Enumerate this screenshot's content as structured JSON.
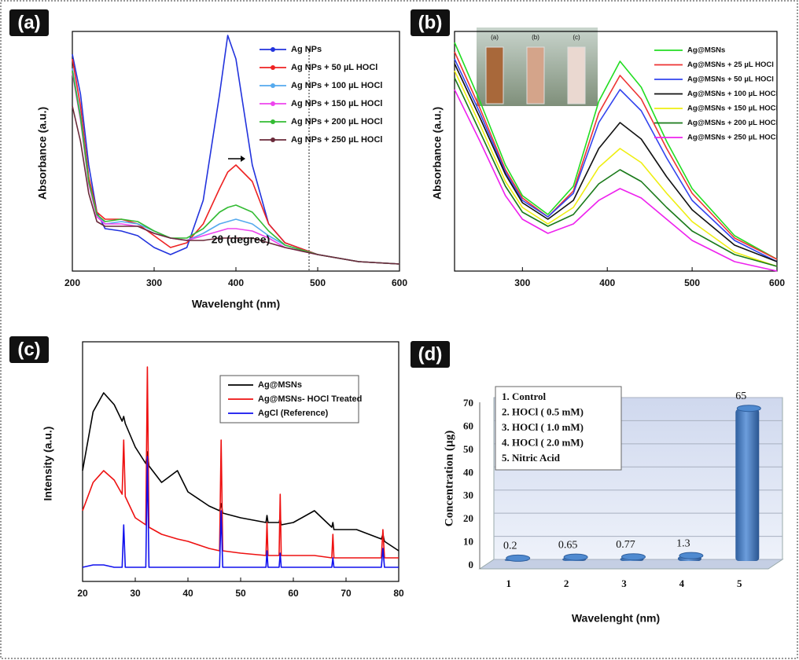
{
  "chart_data": [
    {
      "type": "line",
      "panel_label": "(a)",
      "x_label": "Wavelenght (nm)",
      "y_label": "Absorbance (a.u.)",
      "xlim": [
        200,
        600
      ],
      "ylim": [
        0,
        1
      ],
      "xticks": [
        200,
        300,
        400,
        500,
        600
      ],
      "legend_markers": true,
      "x": [
        200,
        210,
        220,
        230,
        240,
        260,
        280,
        300,
        320,
        340,
        360,
        380,
        390,
        400,
        420,
        440,
        460,
        500,
        550,
        600
      ],
      "series": [
        {
          "name": "Ag NPs",
          "color": "#2233dd",
          "values": [
            0.92,
            0.75,
            0.45,
            0.25,
            0.18,
            0.17,
            0.15,
            0.1,
            0.07,
            0.1,
            0.3,
            0.75,
            1.0,
            0.9,
            0.45,
            0.2,
            0.12,
            0.07,
            0.04,
            0.03
          ]
        },
        {
          "name": "Ag NPs + 50 µL HOCl",
          "color": "#ee2222",
          "values": [
            0.9,
            0.7,
            0.4,
            0.25,
            0.22,
            0.22,
            0.2,
            0.15,
            0.1,
            0.12,
            0.2,
            0.35,
            0.42,
            0.45,
            0.38,
            0.2,
            0.12,
            0.07,
            0.04,
            0.03
          ]
        },
        {
          "name": "Ag NPs + 100 µL HOCl",
          "color": "#55aaee",
          "values": [
            0.86,
            0.66,
            0.38,
            0.24,
            0.2,
            0.21,
            0.2,
            0.17,
            0.14,
            0.13,
            0.16,
            0.2,
            0.21,
            0.22,
            0.2,
            0.15,
            0.11,
            0.07,
            0.04,
            0.03
          ]
        },
        {
          "name": "Ag NPs + 150 µL HOCl",
          "color": "#ee44ee",
          "values": [
            0.84,
            0.64,
            0.37,
            0.23,
            0.2,
            0.2,
            0.19,
            0.16,
            0.14,
            0.13,
            0.15,
            0.17,
            0.18,
            0.18,
            0.17,
            0.14,
            0.1,
            0.07,
            0.04,
            0.03
          ]
        },
        {
          "name": "Ag NPs + 200 µL HOCl",
          "color": "#33bb33",
          "values": [
            0.85,
            0.65,
            0.38,
            0.24,
            0.21,
            0.22,
            0.21,
            0.17,
            0.14,
            0.14,
            0.18,
            0.25,
            0.27,
            0.28,
            0.25,
            0.17,
            0.11,
            0.07,
            0.04,
            0.03
          ]
        },
        {
          "name": "Ag NPs + 250 µL HOCl",
          "color": "#6a2a3a",
          "values": [
            0.7,
            0.55,
            0.33,
            0.21,
            0.19,
            0.19,
            0.19,
            0.16,
            0.14,
            0.13,
            0.13,
            0.14,
            0.14,
            0.14,
            0.14,
            0.12,
            0.1,
            0.07,
            0.04,
            0.03
          ]
        }
      ]
    },
    {
      "type": "line",
      "panel_label": "(b)",
      "x_label": "Wavelenght (nm)",
      "y_label": "Absorbance (a.u.)",
      "xlim": [
        220,
        600
      ],
      "ylim": [
        0,
        1
      ],
      "xticks": [
        300,
        400,
        500,
        600
      ],
      "legend_markers": false,
      "inset_labels": [
        "(a)",
        "(b)",
        "(c)"
      ],
      "x": [
        220,
        250,
        280,
        300,
        330,
        360,
        390,
        415,
        440,
        470,
        500,
        550,
        600
      ],
      "series": [
        {
          "name": "Ag@MSNs",
          "color": "#22dd22",
          "values": [
            0.97,
            0.72,
            0.45,
            0.32,
            0.24,
            0.36,
            0.72,
            0.89,
            0.78,
            0.55,
            0.35,
            0.15,
            0.05
          ]
        },
        {
          "name": "Ag@MSNs + 25 µL HOCl",
          "color": "#ee3333",
          "values": [
            0.93,
            0.69,
            0.43,
            0.31,
            0.23,
            0.34,
            0.67,
            0.83,
            0.73,
            0.52,
            0.33,
            0.14,
            0.05
          ]
        },
        {
          "name": "Ag@MSNs + 50 µL HOCl",
          "color": "#3344ee",
          "values": [
            0.9,
            0.67,
            0.42,
            0.3,
            0.23,
            0.33,
            0.63,
            0.77,
            0.68,
            0.48,
            0.3,
            0.13,
            0.04
          ]
        },
        {
          "name": "Ag@MSNs + 100 µL HOCl",
          "color": "#111111",
          "values": [
            0.88,
            0.65,
            0.41,
            0.29,
            0.22,
            0.3,
            0.52,
            0.63,
            0.56,
            0.4,
            0.26,
            0.11,
            0.04
          ]
        },
        {
          "name": "Ag@MSNs + 150 µL HOCl",
          "color": "#eeee11",
          "values": [
            0.85,
            0.62,
            0.38,
            0.27,
            0.2,
            0.27,
            0.44,
            0.52,
            0.46,
            0.33,
            0.21,
            0.08,
            0.02
          ]
        },
        {
          "name": "Ag@MSNs + 200 µL HOCl",
          "color": "#1a7a1a",
          "values": [
            0.82,
            0.59,
            0.36,
            0.25,
            0.19,
            0.24,
            0.37,
            0.43,
            0.38,
            0.27,
            0.17,
            0.07,
            0.02
          ]
        },
        {
          "name": "Ag@MSNs + 250 µL HOCl",
          "color": "#ee22ee",
          "values": [
            0.77,
            0.55,
            0.32,
            0.22,
            0.16,
            0.2,
            0.3,
            0.35,
            0.31,
            0.22,
            0.13,
            0.04,
            0.0
          ]
        }
      ]
    },
    {
      "type": "line",
      "panel_label": "(c)",
      "x_label": "2θ (degree)",
      "y_label": "Intensity (a.u.)",
      "xlim": [
        20,
        80
      ],
      "ylim": [
        0,
        1
      ],
      "xticks": [
        20,
        30,
        40,
        50,
        60,
        70,
        80
      ],
      "legend_markers": false,
      "legend_box": true,
      "x": [
        20,
        22,
        24,
        26,
        27.5,
        27.8,
        28.1,
        30,
        32,
        32.3,
        32.6,
        35,
        38,
        40,
        44,
        46,
        46.3,
        46.6,
        50,
        54.8,
        55,
        55.2,
        57.3,
        57.5,
        57.7,
        60,
        64,
        67.3,
        67.5,
        67.7,
        72,
        76.7,
        77,
        77.3,
        80
      ],
      "series": [
        {
          "name": "Ag@MSNs",
          "color": "#000000",
          "values": [
            0.47,
            0.72,
            0.8,
            0.75,
            0.68,
            0.7,
            0.67,
            0.57,
            0.5,
            0.55,
            0.49,
            0.42,
            0.47,
            0.38,
            0.32,
            0.3,
            0.33,
            0.29,
            0.27,
            0.25,
            0.28,
            0.25,
            0.25,
            0.27,
            0.24,
            0.25,
            0.3,
            0.23,
            0.25,
            0.22,
            0.22,
            0.18,
            0.2,
            0.17,
            0.13
          ]
        },
        {
          "name": "Ag@MSNs- HOCl Treated",
          "color": "#ee1111",
          "values": [
            0.3,
            0.42,
            0.47,
            0.43,
            0.37,
            0.6,
            0.36,
            0.27,
            0.24,
            0.91,
            0.23,
            0.2,
            0.18,
            0.17,
            0.14,
            0.13,
            0.6,
            0.13,
            0.12,
            0.11,
            0.25,
            0.11,
            0.11,
            0.37,
            0.11,
            0.11,
            0.11,
            0.1,
            0.2,
            0.1,
            0.1,
            0.1,
            0.22,
            0.1,
            0.1
          ]
        },
        {
          "name": "AgCl (Reference)",
          "color": "#1111ee",
          "values": [
            0.06,
            0.07,
            0.07,
            0.06,
            0.06,
            0.24,
            0.06,
            0.06,
            0.06,
            0.53,
            0.06,
            0.06,
            0.06,
            0.06,
            0.06,
            0.06,
            0.3,
            0.06,
            0.06,
            0.06,
            0.13,
            0.06,
            0.06,
            0.12,
            0.06,
            0.06,
            0.06,
            0.06,
            0.1,
            0.06,
            0.06,
            0.06,
            0.14,
            0.06,
            0.06
          ]
        }
      ]
    },
    {
      "type": "bar3d",
      "panel_label": "(d)",
      "y_label": "Concentration (µg)",
      "categories": [
        "1",
        "2",
        "3",
        "4",
        "5"
      ],
      "values": [
        0.2,
        0.65,
        0.77,
        1.3,
        65
      ],
      "color": "#4a80c4",
      "ylim": [
        0,
        70
      ],
      "yticks": [
        0,
        10,
        20,
        30,
        40,
        50,
        60,
        70
      ],
      "grid": true,
      "legend_items": [
        "1. Control",
        "2. HOCl ( 0.5 mM)",
        "3. HOCl ( 1.0 mM)",
        "4. HOCl ( 2.0 mM)",
        "5. Nitric Acid"
      ]
    }
  ]
}
